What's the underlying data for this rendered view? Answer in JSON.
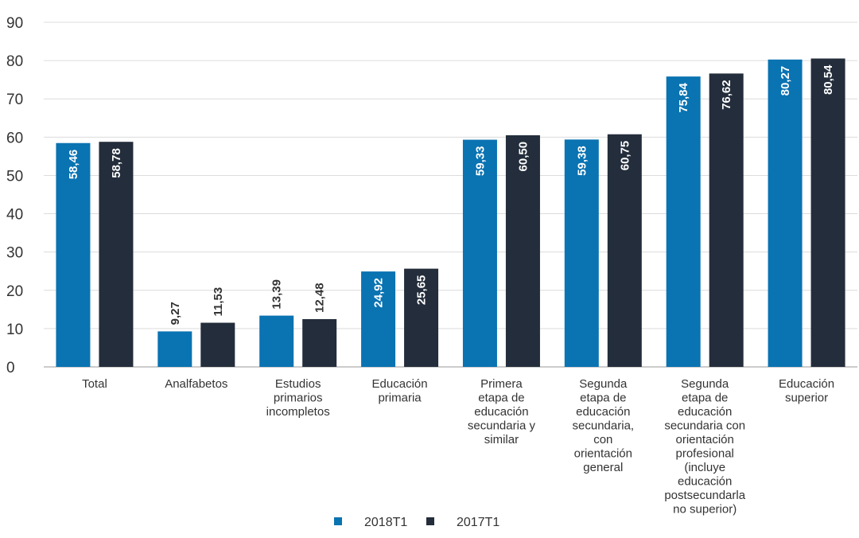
{
  "chart_data": {
    "type": "bar",
    "categories": [
      [
        "Total"
      ],
      [
        "Analfabetos"
      ],
      [
        "Estudios",
        "primarios",
        "incompletos"
      ],
      [
        "Educación",
        "primaria"
      ],
      [
        "Primera",
        "etapa de",
        "educación",
        "secundaria y",
        "similar"
      ],
      [
        "Segunda",
        "etapa de",
        "educación",
        "secundaria,",
        "con",
        "orientación",
        "general"
      ],
      [
        "Segunda",
        "etapa de",
        "educación",
        "secundaria con",
        "orientación",
        "profesional",
        "(incluye",
        "educación",
        "postsecundarla",
        "no superior)"
      ],
      [
        "Educación",
        "superior"
      ]
    ],
    "series": [
      {
        "name": "2018T1",
        "color": "#0a73b2",
        "values": [
          58.46,
          9.27,
          13.39,
          24.92,
          59.33,
          59.38,
          75.84,
          80.27
        ],
        "labels": [
          "58,46",
          "9,27",
          "13,39",
          "24,92",
          "59,33",
          "59,38",
          "75,84",
          "80,27"
        ]
      },
      {
        "name": "2017T1",
        "color": "#232d3b",
        "values": [
          58.78,
          11.53,
          12.48,
          25.65,
          60.5,
          60.75,
          76.62,
          80.54
        ],
        "labels": [
          "58,78",
          "11,53",
          "12,48",
          "25,65",
          "60,50",
          "60,75",
          "76,62",
          "80,54"
        ]
      }
    ],
    "ylim": [
      0,
      90
    ],
    "yticks": [
      "0",
      "10",
      "20",
      "30",
      "40",
      "50",
      "60",
      "70",
      "80",
      "90"
    ],
    "grid": true,
    "legend_position": "bottom-center",
    "title": "",
    "xlabel": "",
    "ylabel": ""
  }
}
